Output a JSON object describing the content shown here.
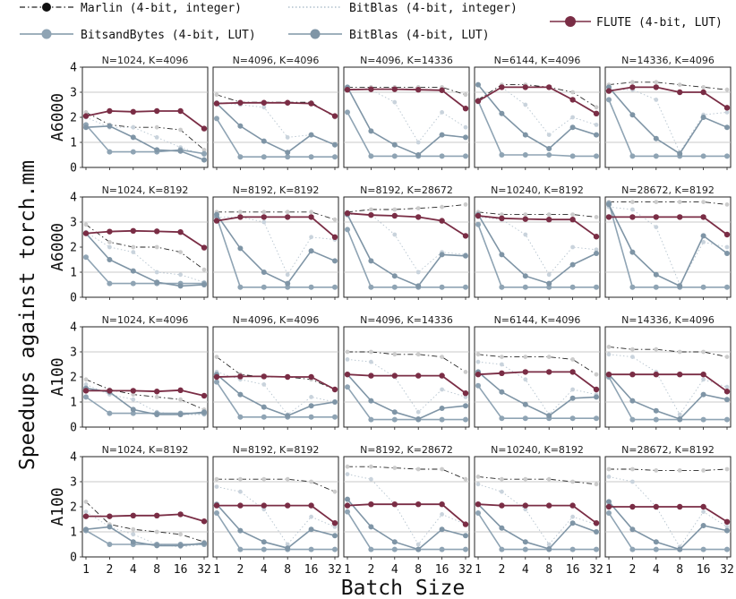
{
  "figure": {
    "ylabel": "Speedups against torch.mm",
    "xlabel": "Batch Size",
    "x_ticks": [
      "1",
      "2",
      "4",
      "8",
      "16",
      "32"
    ],
    "y_ticks": [
      "0",
      "1",
      "2",
      "3",
      "4"
    ]
  },
  "legend": [
    {
      "name": "Marlin (4-bit, integer)",
      "color": "#222222",
      "style": "dashdot"
    },
    {
      "name": "BitBlas (4-bit, integer)",
      "color": "#9fb3c2",
      "style": "dotted"
    },
    {
      "name": "FLUTE (4-bit, LUT)",
      "color": "#7a2d45",
      "style": "solid"
    },
    {
      "name": "BitsandBytes (4-bit, LUT)",
      "color": "#7f95a6",
      "style": "solid"
    },
    {
      "name": "BitBlas (4-bit, LUT)",
      "color": "#7f95a6",
      "style": "solid"
    }
  ],
  "chart_data": {
    "type": "line",
    "x": [
      1,
      2,
      4,
      8,
      16,
      32
    ],
    "ylim": [
      0,
      4
    ],
    "grid": "horizontal at 1 and 3",
    "series_order": [
      "Marlin (4-bit, integer)",
      "BitBlas (4-bit, integer)",
      "FLUTE (4-bit, LUT)",
      "BitsandBytes (4-bit, LUT)",
      "BitBlas (4-bit, LUT)"
    ],
    "rows": [
      {
        "label": "A6000",
        "panels": [
          {
            "title": "N=1024, K=4096",
            "series": [
              [
                2.2,
                1.7,
                1.6,
                1.6,
                1.5,
                0.7
              ],
              [
                2.0,
                1.6,
                1.6,
                1.2,
                0.8,
                0.5
              ],
              [
                2.05,
                2.25,
                2.22,
                2.25,
                2.25,
                1.55
              ],
              [
                1.7,
                0.62,
                0.62,
                0.62,
                0.7,
                0.55
              ],
              [
                1.6,
                1.65,
                1.2,
                0.7,
                0.65,
                0.3
              ]
            ]
          },
          {
            "title": "N=4096, K=4096",
            "series": [
              [
                2.9,
                2.6,
                2.6,
                2.6,
                2.6,
                2.0
              ],
              [
                2.6,
                2.5,
                2.4,
                1.2,
                1.3,
                0.9
              ],
              [
                2.55,
                2.58,
                2.58,
                2.58,
                2.55,
                2.05
              ],
              [
                1.95,
                0.42,
                0.42,
                0.42,
                0.42,
                0.42
              ],
              [
                2.55,
                1.65,
                1.05,
                0.6,
                1.3,
                0.9
              ]
            ]
          },
          {
            "title": "N=4096, K=14336",
            "series": [
              [
                3.2,
                3.2,
                3.2,
                3.2,
                3.2,
                2.9
              ],
              [
                3.1,
                3.1,
                2.6,
                1.0,
                2.2,
                1.6
              ],
              [
                3.1,
                3.12,
                3.12,
                3.1,
                3.08,
                2.35
              ],
              [
                2.2,
                0.45,
                0.45,
                0.45,
                0.45,
                0.45
              ],
              [
                3.2,
                1.45,
                0.9,
                0.5,
                1.3,
                1.2
              ]
            ]
          },
          {
            "title": "N=6144, K=4096",
            "series": [
              [
                2.7,
                3.3,
                3.3,
                3.2,
                3.0,
                2.4
              ],
              [
                2.6,
                3.2,
                2.5,
                1.3,
                2.0,
                1.7
              ],
              [
                2.65,
                3.2,
                3.2,
                3.2,
                2.7,
                2.15
              ],
              [
                2.65,
                0.5,
                0.5,
                0.5,
                0.45,
                0.45
              ],
              [
                3.3,
                2.15,
                1.3,
                0.75,
                1.6,
                1.3
              ]
            ]
          },
          {
            "title": "N=14336, K=4096",
            "series": [
              [
                3.3,
                3.4,
                3.4,
                3.3,
                3.2,
                3.1
              ],
              [
                3.1,
                3.1,
                2.7,
                0.6,
                2.1,
                2.2
              ],
              [
                3.05,
                3.2,
                3.2,
                3.0,
                3.0,
                2.38
              ],
              [
                2.7,
                0.45,
                0.45,
                0.45,
                0.45,
                0.45
              ],
              [
                3.2,
                2.1,
                1.15,
                0.55,
                2.0,
                1.6
              ]
            ]
          }
        ]
      },
      {
        "label": "A6000",
        "panels": [
          {
            "title": "N=1024, K=8192",
            "series": [
              [
                2.9,
                2.2,
                2.0,
                2.0,
                1.8,
                1.1
              ],
              [
                2.6,
                2.0,
                1.8,
                1.0,
                0.9,
                0.6
              ],
              [
                2.55,
                2.62,
                2.65,
                2.63,
                2.6,
                1.98
              ],
              [
                1.6,
                0.55,
                0.55,
                0.55,
                0.55,
                0.55
              ],
              [
                2.55,
                1.5,
                1.05,
                0.6,
                0.45,
                0.5
              ]
            ]
          },
          {
            "title": "N=8192, K=8192",
            "series": [
              [
                3.4,
                3.4,
                3.4,
                3.4,
                3.4,
                3.1
              ],
              [
                3.2,
                3.2,
                3.0,
                0.9,
                2.4,
                2.3
              ],
              [
                3.05,
                3.2,
                3.2,
                3.2,
                3.2,
                2.4
              ],
              [
                3.2,
                0.4,
                0.4,
                0.4,
                0.4,
                0.4
              ],
              [
                3.3,
                1.95,
                1.0,
                0.55,
                1.85,
                1.45
              ]
            ]
          },
          {
            "title": "N=8192, K=28672",
            "series": [
              [
                3.4,
                3.5,
                3.5,
                3.55,
                3.6,
                3.7
              ],
              [
                3.3,
                3.3,
                2.5,
                1.0,
                1.8,
                1.7
              ],
              [
                3.35,
                3.28,
                3.25,
                3.2,
                3.05,
                2.45
              ],
              [
                2.7,
                0.4,
                0.4,
                0.4,
                0.4,
                0.4
              ],
              [
                3.3,
                1.45,
                0.85,
                0.45,
                1.7,
                1.65
              ]
            ]
          },
          {
            "title": "N=10240, K=8192",
            "series": [
              [
                3.4,
                3.3,
                3.3,
                3.3,
                3.3,
                3.2
              ],
              [
                3.2,
                3.1,
                2.5,
                0.9,
                2.0,
                1.9
              ],
              [
                3.25,
                3.15,
                3.12,
                3.1,
                3.1,
                2.42
              ],
              [
                2.9,
                0.4,
                0.4,
                0.4,
                0.4,
                0.4
              ],
              [
                3.3,
                1.7,
                0.85,
                0.55,
                1.3,
                1.75
              ]
            ]
          },
          {
            "title": "N=28672, K=8192",
            "series": [
              [
                3.8,
                3.8,
                3.8,
                3.8,
                3.8,
                3.7
              ],
              [
                3.6,
                3.5,
                2.8,
                0.5,
                2.2,
                2.0
              ],
              [
                3.2,
                3.2,
                3.2,
                3.2,
                3.2,
                2.5
              ],
              [
                3.75,
                0.4,
                0.4,
                0.4,
                0.4,
                0.4
              ],
              [
                3.7,
                1.8,
                0.9,
                0.45,
                2.45,
                1.75
              ]
            ]
          }
        ]
      },
      {
        "label": "A100",
        "panels": [
          {
            "title": "N=1024, K=4096",
            "series": [
              [
                1.9,
                1.5,
                1.3,
                1.2,
                1.1,
                0.7
              ],
              [
                1.7,
                1.3,
                1.1,
                0.6,
                0.5,
                0.5
              ],
              [
                1.45,
                1.45,
                1.45,
                1.42,
                1.47,
                1.25
              ],
              [
                1.2,
                0.55,
                0.55,
                0.55,
                0.55,
                0.55
              ],
              [
                1.55,
                1.4,
                0.7,
                0.5,
                0.5,
                0.6
              ]
            ]
          },
          {
            "title": "N=4096, K=4096",
            "series": [
              [
                2.8,
                2.1,
                2.0,
                2.0,
                1.9,
                1.5
              ],
              [
                2.2,
                1.9,
                1.7,
                0.5,
                1.2,
                1.0
              ],
              [
                2.0,
                2.02,
                2.02,
                2.0,
                2.0,
                1.5
              ],
              [
                1.8,
                0.4,
                0.4,
                0.4,
                0.4,
                0.4
              ],
              [
                2.1,
                1.3,
                0.8,
                0.45,
                0.85,
                1.0
              ]
            ]
          },
          {
            "title": "N=4096, K=14336",
            "series": [
              [
                3.0,
                3.0,
                2.9,
                2.9,
                2.8,
                2.2
              ],
              [
                2.7,
                2.6,
                2.0,
                0.6,
                1.5,
                1.2
              ],
              [
                2.1,
                2.05,
                2.05,
                2.05,
                2.05,
                1.35
              ],
              [
                1.6,
                0.3,
                0.3,
                0.3,
                0.3,
                0.3
              ],
              [
                2.1,
                1.05,
                0.6,
                0.32,
                0.75,
                0.85
              ]
            ]
          },
          {
            "title": "N=6144, K=4096",
            "series": [
              [
                2.9,
                2.8,
                2.8,
                2.8,
                2.7,
                2.1
              ],
              [
                2.6,
                2.5,
                1.9,
                0.5,
                1.5,
                1.3
              ],
              [
                2.1,
                2.15,
                2.2,
                2.2,
                2.2,
                1.5
              ],
              [
                1.65,
                0.35,
                0.35,
                0.35,
                0.35,
                0.35
              ],
              [
                2.2,
                1.4,
                0.9,
                0.45,
                1.15,
                1.2
              ]
            ]
          },
          {
            "title": "N=14336, K=4096",
            "series": [
              [
                3.2,
                3.1,
                3.1,
                3.0,
                3.0,
                2.8
              ],
              [
                2.9,
                2.8,
                2.2,
                0.5,
                1.9,
                1.6
              ],
              [
                2.1,
                2.1,
                2.1,
                2.1,
                2.1,
                1.42
              ],
              [
                2.0,
                0.3,
                0.3,
                0.3,
                0.3,
                0.3
              ],
              [
                2.1,
                1.05,
                0.65,
                0.32,
                1.3,
                1.1
              ]
            ]
          }
        ]
      },
      {
        "label": "A100",
        "panels": [
          {
            "title": "N=1024, K=8192",
            "series": [
              [
                2.2,
                1.3,
                1.1,
                1.0,
                0.9,
                0.6
              ],
              [
                1.8,
                1.2,
                0.9,
                0.5,
                0.4,
                0.5
              ],
              [
                1.62,
                1.62,
                1.65,
                1.65,
                1.7,
                1.42
              ],
              [
                1.05,
                0.5,
                0.5,
                0.5,
                0.5,
                0.5
              ],
              [
                1.1,
                1.2,
                0.6,
                0.45,
                0.45,
                0.55
              ]
            ]
          },
          {
            "title": "N=8192, K=8192",
            "series": [
              [
                3.1,
                3.1,
                3.1,
                3.1,
                3.0,
                2.6
              ],
              [
                2.8,
                2.6,
                1.9,
                0.5,
                1.6,
                1.2
              ],
              [
                2.05,
                2.05,
                2.05,
                2.05,
                2.05,
                1.35
              ],
              [
                1.75,
                0.3,
                0.3,
                0.3,
                0.3,
                0.3
              ],
              [
                2.1,
                1.05,
                0.6,
                0.35,
                1.1,
                0.85
              ]
            ]
          },
          {
            "title": "N=8192, K=28672",
            "series": [
              [
                3.6,
                3.6,
                3.55,
                3.5,
                3.5,
                3.1
              ],
              [
                3.3,
                3.1,
                2.1,
                0.5,
                1.7,
                1.3
              ],
              [
                2.05,
                2.1,
                2.1,
                2.1,
                2.1,
                1.3
              ],
              [
                1.8,
                0.3,
                0.3,
                0.3,
                0.3,
                0.3
              ],
              [
                2.3,
                1.2,
                0.6,
                0.3,
                1.1,
                0.85
              ]
            ]
          },
          {
            "title": "N=10240, K=8192",
            "series": [
              [
                3.2,
                3.1,
                3.1,
                3.1,
                3.0,
                2.9
              ],
              [
                2.9,
                2.6,
                1.9,
                0.5,
                1.6,
                1.3
              ],
              [
                2.1,
                2.05,
                2.05,
                2.05,
                2.05,
                1.35
              ],
              [
                1.75,
                0.3,
                0.3,
                0.3,
                0.3,
                0.3
              ],
              [
                2.1,
                1.15,
                0.6,
                0.32,
                1.35,
                1.0
              ]
            ]
          },
          {
            "title": "N=28672, K=8192",
            "series": [
              [
                3.5,
                3.5,
                3.45,
                3.45,
                3.45,
                3.5
              ],
              [
                3.2,
                3.0,
                2.0,
                0.4,
                1.8,
                1.2
              ],
              [
                2.0,
                2.0,
                2.0,
                2.0,
                2.0,
                1.4
              ],
              [
                1.75,
                0.3,
                0.3,
                0.3,
                0.3,
                0.3
              ],
              [
                2.2,
                1.1,
                0.6,
                0.3,
                1.25,
                1.05
              ]
            ]
          }
        ]
      }
    ]
  }
}
